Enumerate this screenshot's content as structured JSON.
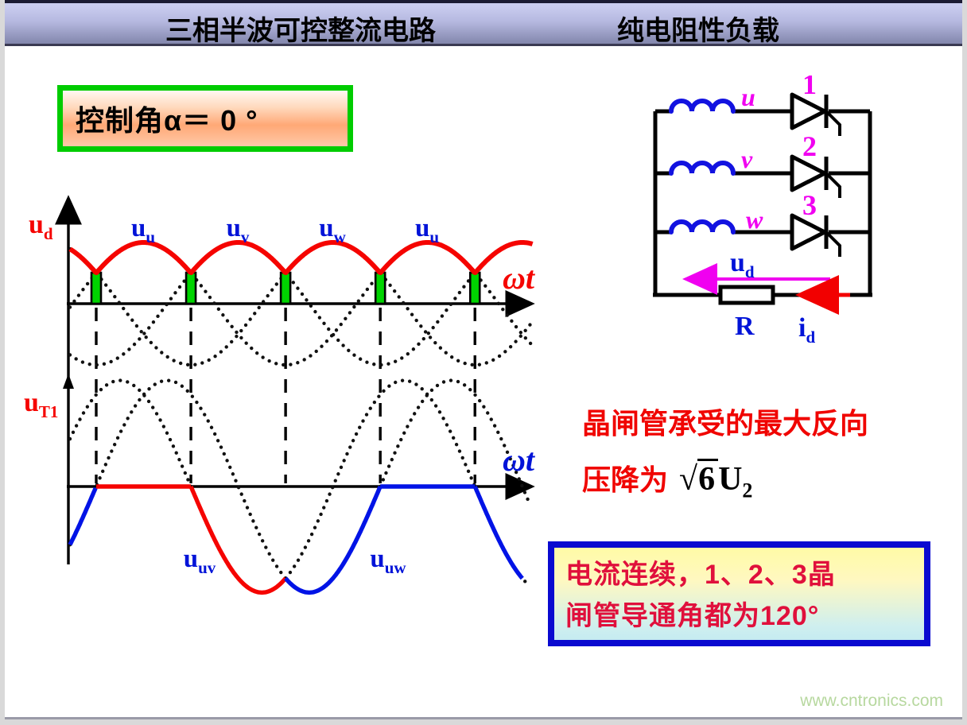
{
  "title": {
    "left": "三相半波可控整流电路",
    "right": "纯电阻性负载"
  },
  "control_box": {
    "label": "控制角α＝ 0 °"
  },
  "waveforms": {
    "top": {
      "y_label": {
        "base": "u",
        "sub": "d"
      },
      "x_label": "ωt",
      "hump_labels": [
        {
          "base": "u",
          "sub": "u"
        },
        {
          "base": "u",
          "sub": "v"
        },
        {
          "base": "u",
          "sub": "w"
        },
        {
          "base": "u",
          "sub": "u"
        }
      ]
    },
    "bottom": {
      "y_label": {
        "base": "u",
        "sub": "T1"
      },
      "x_label": "ωt",
      "curve_labels": [
        {
          "base": "u",
          "sub": "uv"
        },
        {
          "base": "u",
          "sub": "uw"
        }
      ]
    }
  },
  "circuit": {
    "phase_labels": [
      "u",
      "v",
      "w"
    ],
    "thyristor_numbers": [
      "1",
      "2",
      "3"
    ],
    "ud_label": {
      "base": "u",
      "sub": "d"
    },
    "resistor_label": "R",
    "id_label": {
      "base": "i",
      "sub": "d"
    }
  },
  "notes": {
    "reverse_voltage": {
      "line1": "晶闸管承受的最大反向",
      "line2_prefix": "压降为",
      "formula": {
        "radical": "√",
        "radicand": "6",
        "symbol": "U",
        "sub": "2"
      }
    },
    "conduction": {
      "line1": "电流连续，1、2、3晶",
      "line2": "闸管导通角都为120°"
    }
  },
  "watermark": "www.cntronics.com",
  "colors": {
    "red_curve": "#f50400",
    "blue_curve": "#0013e6",
    "green_pulse": "#00d400",
    "magenta": "#f000f0",
    "label_blue": "#0013d8",
    "box_green_border": "#00cc00",
    "box_blue_border": "#0a0ad0",
    "crimson_text": "#e0103c"
  },
  "chart_data": [
    {
      "type": "line",
      "title": "三相半波可控整流输出电压 ud（α=0°）",
      "xlabel": "ωt",
      "ylabel": "ud",
      "amplitude": 1,
      "firing_angle_deg": 0,
      "conduction_angle_deg": 120,
      "phases": [
        {
          "name": "u",
          "peak_deg": 90
        },
        {
          "name": "v",
          "peak_deg": 210
        },
        {
          "name": "w",
          "peak_deg": 330
        }
      ],
      "pulse_angles_deg": [
        30,
        150,
        270,
        390,
        510
      ],
      "envelope": "max(u,v,w)",
      "theta_range_deg": [
        -3.3,
        584
      ],
      "grid": false,
      "legend": false
    },
    {
      "type": "line",
      "title": "晶闸管T1两端电压 uT1",
      "xlabel": "ωt",
      "ylabel": "uT1",
      "line_voltage_amplitude": 1.732,
      "dotted_curves": [
        "u_uv",
        "u_uw"
      ],
      "segments": [
        {
          "curve": "u_uw",
          "from_deg": -3.3,
          "to_deg": 30,
          "color": "blue"
        },
        {
          "curve": "zero",
          "from_deg": 30,
          "to_deg": 150,
          "color": "red"
        },
        {
          "curve": "u_uv",
          "from_deg": 150,
          "to_deg": 270,
          "color": "red"
        },
        {
          "curve": "u_uw",
          "from_deg": 270,
          "to_deg": 390,
          "color": "blue"
        },
        {
          "curve": "zero",
          "from_deg": 390,
          "to_deg": 510,
          "color": "blue"
        },
        {
          "curve": "u_uv",
          "from_deg": 510,
          "to_deg": 570,
          "color": "blue"
        }
      ],
      "theta_range_deg": [
        -3.3,
        578
      ],
      "grid": false,
      "legend": false
    }
  ]
}
